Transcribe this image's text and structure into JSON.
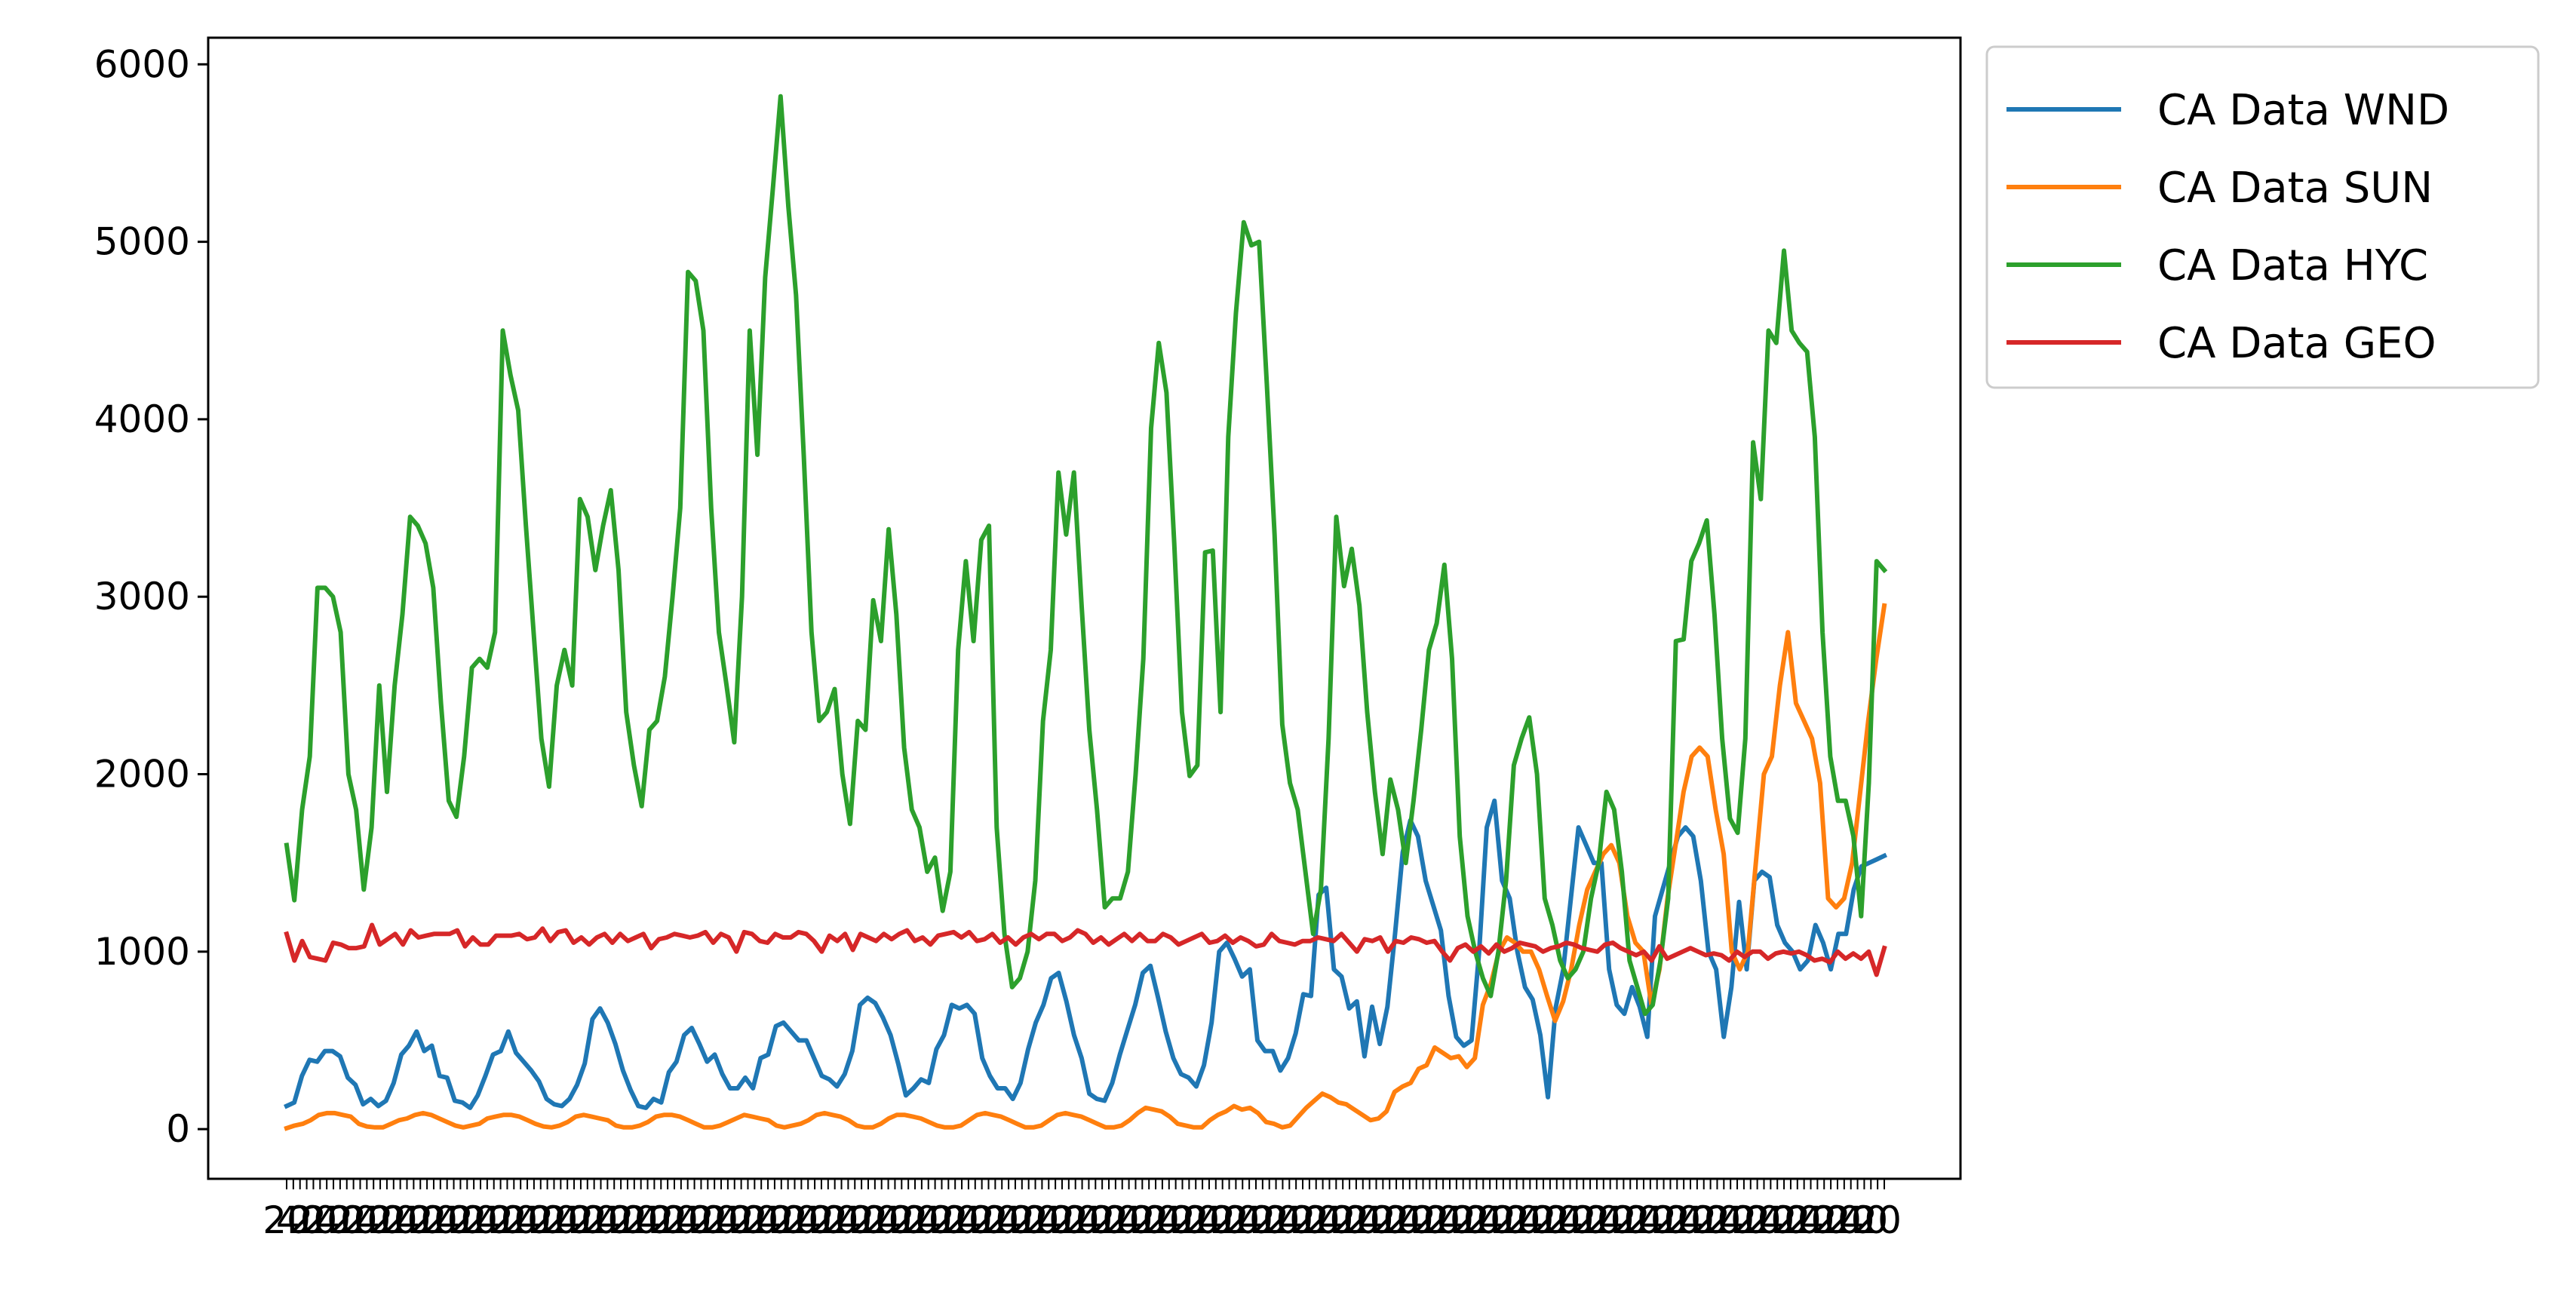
{
  "chart_data": {
    "type": "line",
    "title": "",
    "xlabel": "",
    "ylabel": "",
    "ylim": [
      -280,
      6150
    ],
    "yticks": [
      0,
      1000,
      2000,
      3000,
      4000,
      5000,
      6000
    ],
    "grid": false,
    "legend_position": "outside-top-right",
    "x_tick_count": 240,
    "x_tick_labels_note": "dense overlapping date labels, illegible",
    "series": [
      {
        "name": "CA Data WND",
        "color": "#1f77b4",
        "values": [
          130,
          150,
          300,
          390,
          380,
          440,
          440,
          410,
          290,
          250,
          140,
          170,
          130,
          160,
          260,
          420,
          470,
          550,
          440,
          470,
          300,
          290,
          160,
          150,
          120,
          190,
          300,
          420,
          440,
          550,
          430,
          380,
          330,
          270,
          170,
          140,
          130,
          170,
          250,
          370,
          620,
          680,
          600,
          480,
          330,
          220,
          130,
          120,
          170,
          150,
          320,
          380,
          530,
          570,
          480,
          380,
          420,
          310,
          230,
          230,
          290,
          230,
          400,
          420,
          580,
          600,
          550,
          500,
          500,
          400,
          300,
          280,
          240,
          310,
          440,
          700,
          740,
          710,
          630,
          530,
          370,
          190,
          230,
          280,
          260,
          450,
          530,
          700,
          680,
          700,
          650,
          400,
          300,
          230,
          230,
          170,
          260,
          450,
          600,
          700,
          850,
          880,
          720,
          530,
          400,
          200,
          170,
          160,
          260,
          420,
          560,
          700,
          880,
          920,
          740,
          550,
          400,
          310,
          290,
          240,
          360,
          600,
          1000,
          1050,
          960,
          860,
          900,
          500,
          440,
          440,
          330,
          400,
          540,
          760,
          750,
          1320,
          1360,
          900,
          860,
          680,
          720,
          410,
          690,
          480,
          690,
          1100,
          1560,
          1740,
          1650,
          1400,
          1260,
          1120,
          750,
          520,
          470,
          500,
          1000,
          1700,
          1850,
          1400,
          1300,
          1000,
          800,
          730,
          530,
          180,
          680,
          900,
          1300,
          1700,
          1600,
          1500,
          1500,
          900,
          700,
          650,
          800,
          690,
          520,
          1200,
          1350,
          1500,
          1650,
          1700,
          1650,
          1400,
          1000,
          900,
          520,
          800,
          1280,
          900,
          1400,
          1450,
          1420,
          1150,
          1050,
          1000,
          900,
          950,
          1150,
          1050,
          900,
          1100,
          1100,
          1350,
          1480,
          1500,
          1520,
          1540
        ]
      },
      {
        "name": "CA Data SUN",
        "color": "#ff7f0e",
        "values": [
          5,
          20,
          30,
          50,
          80,
          90,
          90,
          80,
          70,
          30,
          15,
          10,
          10,
          30,
          50,
          60,
          80,
          90,
          80,
          60,
          40,
          20,
          10,
          20,
          30,
          60,
          70,
          80,
          80,
          70,
          50,
          30,
          15,
          10,
          20,
          40,
          70,
          80,
          70,
          60,
          50,
          20,
          10,
          10,
          20,
          40,
          70,
          80,
          80,
          70,
          50,
          30,
          10,
          10,
          20,
          40,
          60,
          80,
          70,
          60,
          50,
          20,
          10,
          20,
          30,
          50,
          80,
          90,
          80,
          70,
          50,
          20,
          10,
          10,
          30,
          60,
          80,
          80,
          70,
          60,
          40,
          20,
          10,
          10,
          20,
          50,
          80,
          90,
          80,
          70,
          50,
          30,
          10,
          10,
          20,
          50,
          80,
          90,
          80,
          70,
          50,
          30,
          10,
          10,
          20,
          50,
          90,
          120,
          110,
          100,
          70,
          30,
          20,
          10,
          10,
          50,
          80,
          100,
          130,
          110,
          120,
          90,
          40,
          30,
          10,
          20,
          70,
          120,
          160,
          200,
          180,
          150,
          140,
          110,
          80,
          50,
          60,
          100,
          210,
          240,
          260,
          340,
          360,
          460,
          430,
          400,
          410,
          350,
          400,
          700,
          820,
          1000,
          1080,
          1050,
          1000,
          1000,
          900,
          750,
          610,
          720,
          900,
          1150,
          1350,
          1450,
          1550,
          1600,
          1500,
          1200,
          1050,
          1000,
          700,
          900,
          1300,
          1600,
          1900,
          2100,
          2150,
          2100,
          1800,
          1550,
          1000,
          900,
          1000,
          1500,
          2000,
          2100,
          2500,
          2800,
          2400,
          2300,
          2200,
          1950,
          1300,
          1250,
          1300,
          1500,
          1900,
          2300,
          2650,
          2950
        ]
      },
      {
        "name": "CA Data HYC",
        "color": "#2ca02c",
        "values": [
          1600,
          1290,
          1800,
          2100,
          3050,
          3050,
          3000,
          2800,
          2000,
          1800,
          1350,
          1700,
          2500,
          1900,
          2500,
          2900,
          3450,
          3400,
          3300,
          3050,
          2400,
          1850,
          1760,
          2100,
          2600,
          2650,
          2600,
          2800,
          4500,
          4250,
          4050,
          3400,
          2800,
          2200,
          1930,
          2500,
          2700,
          2500,
          3550,
          3450,
          3150,
          3400,
          3600,
          3150,
          2350,
          2050,
          1820,
          2250,
          2300,
          2550,
          3000,
          3500,
          4830,
          4780,
          4500,
          3500,
          2800,
          2500,
          2180,
          3000,
          4500,
          3800,
          4800,
          5300,
          5820,
          5200,
          4700,
          3800,
          2800,
          2300,
          2350,
          2480,
          2000,
          1720,
          2300,
          2250,
          2980,
          2750,
          3380,
          2900,
          2150,
          1800,
          1700,
          1450,
          1530,
          1230,
          1450,
          2700,
          3200,
          2750,
          3320,
          3400,
          1700,
          1100,
          800,
          850,
          1000,
          1400,
          2300,
          2700,
          3700,
          3350,
          3700,
          2950,
          2250,
          1800,
          1250,
          1300,
          1300,
          1450,
          2000,
          2650,
          3950,
          4430,
          4150,
          3300,
          2350,
          1990,
          2050,
          3250,
          3260,
          2350,
          3900,
          4600,
          5110,
          4980,
          5000,
          4200,
          3350,
          2280,
          1950,
          1800,
          1450,
          1100,
          1350,
          2200,
          3450,
          3060,
          3270,
          2950,
          2350,
          1900,
          1550,
          1970,
          1800,
          1500,
          1850,
          2250,
          2700,
          2850,
          3180,
          2650,
          1650,
          1200,
          1000,
          850,
          750,
          1000,
          1400,
          2050,
          2200,
          2320,
          2000,
          1300,
          1150,
          950,
          850,
          900,
          1000,
          1300,
          1500,
          1900,
          1800,
          1450,
          950,
          800,
          650,
          700,
          950,
          1300,
          2750,
          2760,
          3200,
          3300,
          3430,
          2900,
          2200,
          1750,
          1670,
          2200,
          3870,
          3550,
          4500,
          4430,
          4950,
          4500,
          4430,
          4380,
          3900,
          2800,
          2100,
          1850,
          1850,
          1650,
          1200,
          1950,
          3200,
          3150
        ]
      },
      {
        "name": "CA Data GEO",
        "color": "#d62728",
        "values": [
          1100,
          950,
          1060,
          970,
          960,
          950,
          1050,
          1040,
          1020,
          1020,
          1030,
          1150,
          1040,
          1070,
          1100,
          1040,
          1120,
          1080,
          1090,
          1100,
          1100,
          1100,
          1120,
          1030,
          1080,
          1040,
          1040,
          1090,
          1090,
          1090,
          1100,
          1070,
          1080,
          1130,
          1060,
          1110,
          1120,
          1050,
          1080,
          1040,
          1080,
          1100,
          1050,
          1100,
          1060,
          1080,
          1100,
          1020,
          1070,
          1080,
          1100,
          1090,
          1080,
          1090,
          1110,
          1050,
          1100,
          1080,
          1000,
          1110,
          1100,
          1060,
          1050,
          1100,
          1080,
          1080,
          1110,
          1100,
          1060,
          1000,
          1090,
          1060,
          1100,
          1010,
          1100,
          1080,
          1060,
          1100,
          1070,
          1100,
          1120,
          1060,
          1080,
          1040,
          1090,
          1100,
          1110,
          1080,
          1110,
          1060,
          1070,
          1100,
          1050,
          1080,
          1040,
          1080,
          1100,
          1070,
          1100,
          1100,
          1060,
          1080,
          1120,
          1100,
          1050,
          1080,
          1040,
          1070,
          1100,
          1060,
          1100,
          1060,
          1060,
          1100,
          1080,
          1040,
          1060,
          1080,
          1100,
          1050,
          1060,
          1090,
          1050,
          1080,
          1060,
          1030,
          1040,
          1100,
          1060,
          1050,
          1040,
          1060,
          1060,
          1080,
          1070,
          1060,
          1100,
          1050,
          1000,
          1070,
          1060,
          1080,
          1000,
          1060,
          1050,
          1080,
          1070,
          1050,
          1060,
          1000,
          950,
          1020,
          1040,
          1000,
          1030,
          990,
          1040,
          1000,
          1020,
          1050,
          1040,
          1030,
          1000,
          1020,
          1030,
          1050,
          1040,
          1020,
          1010,
          1000,
          1040,
          1050,
          1020,
          1000,
          980,
          1000,
          950,
          1030,
          960,
          980,
          1000,
          1020,
          1000,
          980,
          990,
          980,
          950,
          1000,
          970,
          1000,
          1000,
          960,
          990,
          1000,
          990,
          1000,
          980,
          950,
          960,
          940,
          1000,
          960,
          990,
          960,
          1000,
          870,
          1020
        ]
      }
    ]
  }
}
